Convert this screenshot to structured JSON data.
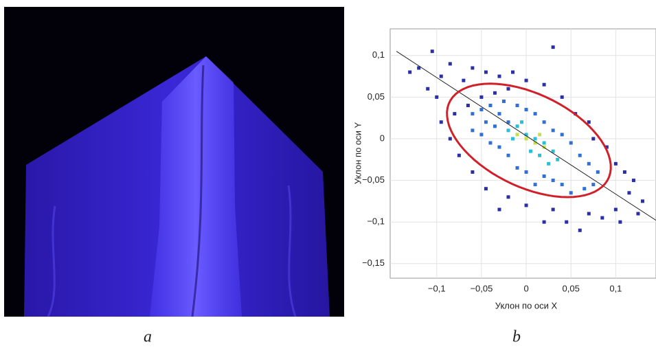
{
  "panel_labels": [
    "a",
    "b"
  ],
  "chart_data": {
    "type": "scatter",
    "x_label": "Уклон по оси X",
    "y_label": "Уклон по оси Y",
    "x": [
      -0.12,
      -0.105,
      -0.13,
      -0.11,
      -0.095,
      -0.1,
      -0.085,
      -0.07,
      -0.06,
      -0.045,
      -0.03,
      -0.02,
      -0.015,
      0.03,
      0.0,
      0.02,
      0.04,
      0.055,
      0.07,
      0.075,
      0.09,
      0.1,
      0.11,
      0.12,
      0.115,
      0.13,
      0.125,
      0.105,
      0.1,
      0.085,
      0.07,
      0.06,
      0.045,
      0.03,
      0.02,
      0.0,
      -0.02,
      -0.03,
      -0.045,
      -0.06,
      -0.075,
      -0.085,
      -0.095,
      -0.08,
      -0.065,
      -0.05,
      -0.035,
      -0.06,
      -0.05,
      -0.045,
      -0.04,
      -0.03,
      -0.025,
      -0.02,
      -0.01,
      0.0,
      0.01,
      0.02,
      0.03,
      0.04,
      0.05,
      0.06,
      0.07,
      0.08,
      0.075,
      0.065,
      0.05,
      0.04,
      0.03,
      0.02,
      0.01,
      0.0,
      -0.01,
      -0.02,
      -0.03,
      -0.04,
      -0.05,
      -0.06,
      -0.035,
      -0.02,
      -0.01,
      0.0,
      0.01,
      0.02,
      0.03,
      -0.015,
      0.005,
      0.015,
      0.025,
      -0.005,
      0.035,
      0.0,
      0.01,
      -0.01,
      0.02,
      0.015
    ],
    "values": [
      0.085,
      0.105,
      0.08,
      0.06,
      0.075,
      0.05,
      0.09,
      0.07,
      0.085,
      0.08,
      0.075,
      0.06,
      0.08,
      0.11,
      0.07,
      0.065,
      0.05,
      0.03,
      0.02,
      0.0,
      -0.01,
      -0.03,
      -0.04,
      -0.05,
      -0.065,
      -0.075,
      -0.09,
      -0.1,
      -0.085,
      -0.095,
      -0.09,
      -0.11,
      -0.1,
      -0.085,
      -0.1,
      -0.08,
      -0.07,
      -0.085,
      -0.06,
      -0.04,
      -0.02,
      0.0,
      0.02,
      0.03,
      0.04,
      0.05,
      0.055,
      0.03,
      0.035,
      0.02,
      0.04,
      0.03,
      0.045,
      0.02,
      0.04,
      0.035,
      0.03,
      0.02,
      0.01,
      0.005,
      -0.005,
      -0.02,
      -0.03,
      -0.04,
      -0.055,
      -0.06,
      -0.065,
      -0.055,
      -0.05,
      -0.045,
      -0.055,
      -0.04,
      -0.035,
      -0.02,
      -0.01,
      -0.005,
      0.005,
      0.01,
      0.015,
      0.01,
      0.015,
      0.005,
      0.0,
      -0.005,
      -0.015,
      0.0,
      -0.015,
      -0.02,
      -0.03,
      0.02,
      -0.025,
      0.0,
      -0.005,
      0.005,
      -0.01,
      0.005
    ],
    "density": [
      0,
      0,
      0,
      0,
      0,
      0,
      0,
      0,
      0,
      0,
      0,
      0,
      0,
      0,
      0,
      0,
      0,
      0,
      0,
      0,
      0,
      0,
      0,
      0,
      0,
      0,
      0,
      0,
      0,
      0,
      0,
      0,
      0,
      0,
      0,
      0,
      0,
      0,
      0,
      0,
      0,
      0,
      0,
      0,
      0,
      0,
      0,
      1,
      1,
      1,
      1,
      1,
      1,
      1,
      1,
      1,
      1,
      1,
      1,
      1,
      1,
      1,
      1,
      1,
      1,
      1,
      1,
      1,
      1,
      1,
      1,
      1,
      1,
      1,
      1,
      1,
      1,
      1,
      1,
      2,
      2,
      2,
      2,
      2,
      2,
      2,
      2,
      2,
      2,
      2,
      2,
      3,
      3,
      3,
      3,
      3
    ],
    "density_colors": [
      "#2b2fa6",
      "#2f6fd6",
      "#29c0d6",
      "#c6e04a"
    ],
    "fit_line": {
      "x": [
        -0.145,
        0.145
      ],
      "y": [
        0.105,
        -0.098
      ],
      "color": "#222222"
    },
    "ellipse": {
      "center": [
        0.003,
        -0.002
      ],
      "semi_axes": [
        0.1,
        0.055
      ],
      "angle": -28.8,
      "color": "#d0202a"
    },
    "xlim": [
      -0.152,
      0.145
    ],
    "ylim": [
      -0.1675,
      0.132
    ],
    "xticks": [
      {
        "value": -0.1,
        "label": "−0,1"
      },
      {
        "value": -0.05,
        "label": "−0,05"
      },
      0,
      {
        "value": 0.05,
        "label": "0,05"
      },
      {
        "value": 0.1,
        "label": "0,1"
      }
    ],
    "yticks": [
      {
        "value": 0.1,
        "label": "0,1"
      },
      {
        "value": 0.05,
        "label": "0,05"
      },
      0,
      {
        "value": -0.05,
        "label": "−0,05"
      },
      {
        "value": -0.1,
        "label": "−0,1"
      },
      {
        "value": -0.15,
        "label": "−0,15"
      }
    ],
    "grid": true
  }
}
